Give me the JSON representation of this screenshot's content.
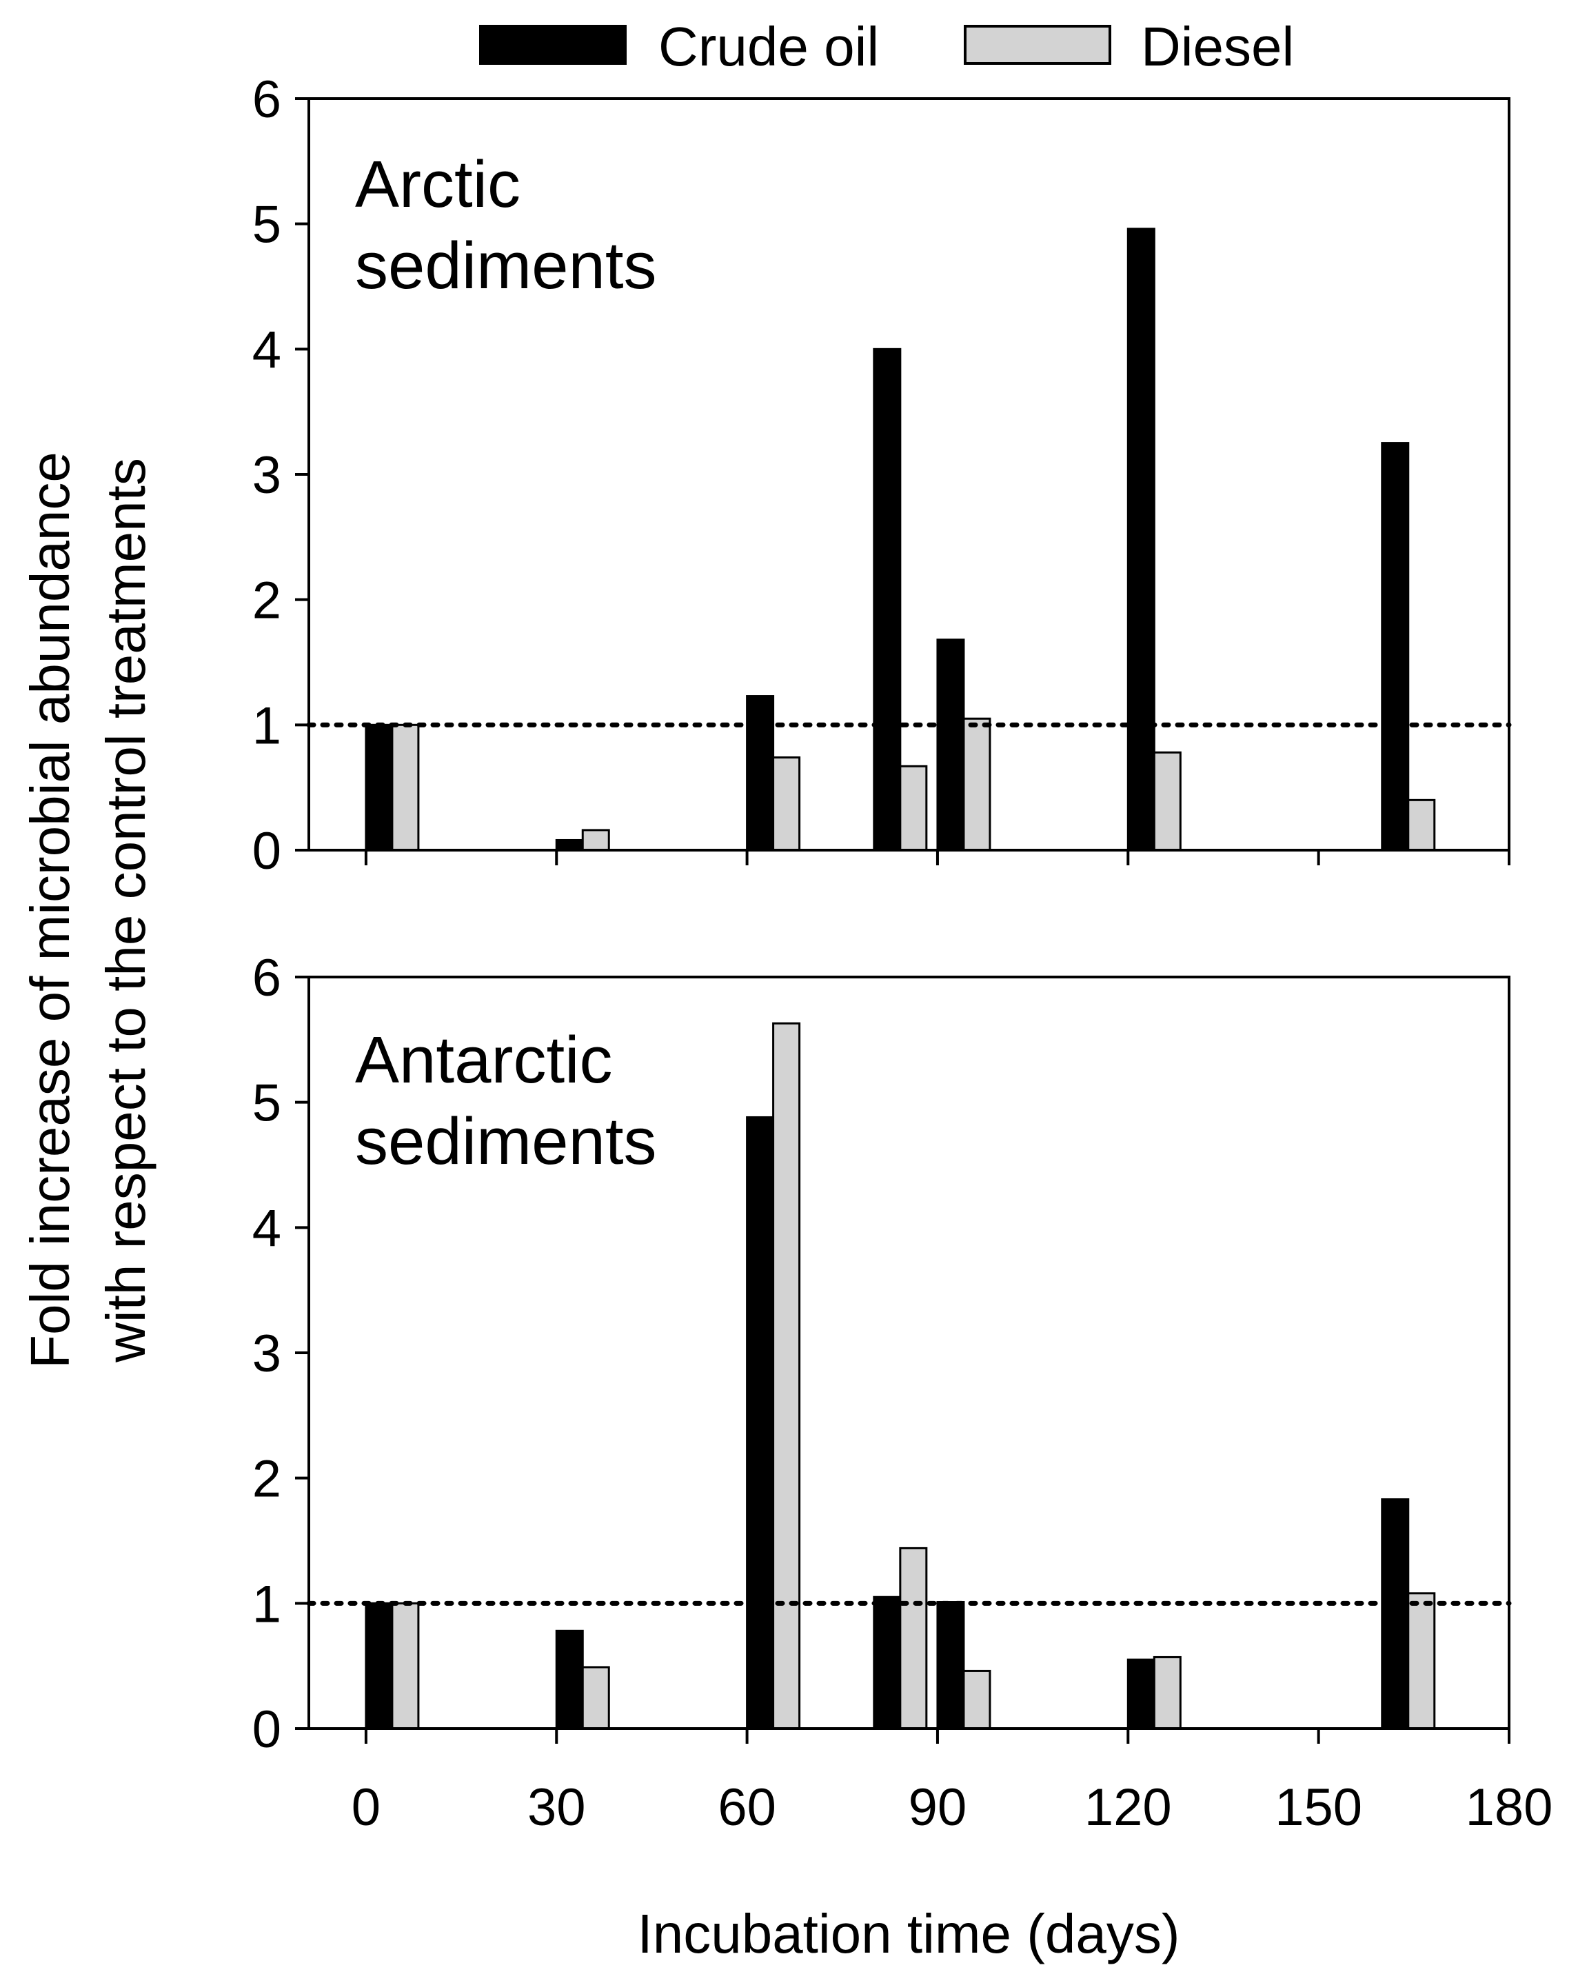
{
  "chart_data": [
    {
      "type": "bar",
      "panel_label": [
        "Arctic",
        "sediments"
      ],
      "x": [
        0,
        30,
        60,
        80,
        90,
        120,
        160
      ],
      "x_ticks": [
        "0",
        "30",
        "60",
        "90",
        "120",
        "150",
        "180"
      ],
      "x_tick_values": [
        0,
        30,
        60,
        90,
        120,
        150,
        180
      ],
      "xlim": [
        -9,
        180
      ],
      "y_ticks": [
        "0",
        "1",
        "2",
        "3",
        "4",
        "5",
        "6"
      ],
      "ylim": [
        0,
        6
      ],
      "reference_line": 1,
      "series": [
        {
          "name": "Crude oil",
          "values": [
            1.0,
            0.08,
            1.23,
            4.0,
            1.68,
            4.96,
            3.25
          ]
        },
        {
          "name": "Diesel",
          "values": [
            1.0,
            0.16,
            0.74,
            0.67,
            1.05,
            0.78,
            0.4
          ]
        }
      ]
    },
    {
      "type": "bar",
      "panel_label": [
        "Antarctic",
        "sediments"
      ],
      "x": [
        0,
        30,
        60,
        80,
        90,
        120,
        160
      ],
      "x_ticks": [
        "0",
        "30",
        "60",
        "90",
        "120",
        "150",
        "180"
      ],
      "x_tick_values": [
        0,
        30,
        60,
        90,
        120,
        150,
        180
      ],
      "xlim": [
        -9,
        180
      ],
      "y_ticks": [
        "0",
        "1",
        "2",
        "3",
        "4",
        "5",
        "6"
      ],
      "ylim": [
        0,
        6
      ],
      "reference_line": 1,
      "series": [
        {
          "name": "Crude oil",
          "values": [
            1.0,
            0.78,
            4.88,
            1.05,
            1.01,
            0.55,
            1.83
          ]
        },
        {
          "name": "Diesel",
          "values": [
            1.0,
            0.49,
            5.63,
            1.44,
            0.46,
            0.57,
            1.08
          ]
        }
      ]
    }
  ],
  "legend": [
    {
      "name": "Crude oil",
      "color": "#000000"
    },
    {
      "name": "Diesel",
      "color": "#d3d3d3"
    }
  ],
  "ylabel": [
    "Fold increase of microbial abundance",
    "with respect to the control treatments"
  ],
  "xlabel": "Incubation time (days)"
}
